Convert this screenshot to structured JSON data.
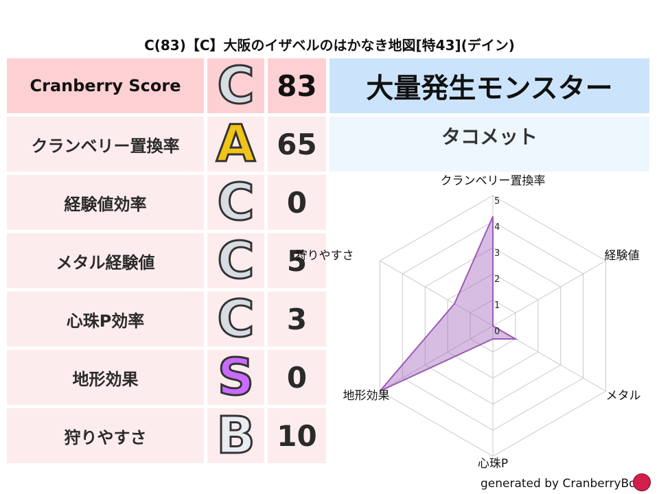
{
  "title": "C(83)【C】大阪のイザベルのはかなき地図[特43](デイン)",
  "rows": [
    {
      "label": "Cranberry Score",
      "grade": "C",
      "value": "83"
    },
    {
      "label": "クランベリー置換率",
      "grade": "A",
      "value": "65"
    },
    {
      "label": "経験値効率",
      "grade": "C",
      "value": "0"
    },
    {
      "label": "メタル経験値",
      "grade": "C",
      "value": "5"
    },
    {
      "label": "心珠P効率",
      "grade": "C",
      "value": "3"
    },
    {
      "label": "地形効果",
      "grade": "S",
      "value": "0"
    },
    {
      "label": "狩りやすさ",
      "grade": "B",
      "value": "10"
    }
  ],
  "grade_colors": {
    "C": "#d8dde3",
    "A": "#f0c419",
    "S": "#c86bff",
    "B": "#e9edf1"
  },
  "right": {
    "header": "大量発生モンスター",
    "monster": "タコメット"
  },
  "footer": "generated by CranberryBot",
  "chart_data": {
    "type": "radar",
    "axes": [
      "クランベリー置換率",
      "経験値",
      "メタル",
      "心珠P",
      "地形効果",
      "狩りやすさ"
    ],
    "values": [
      4.2,
      0,
      1,
      0.5,
      5,
      1.7
    ],
    "range": [
      0,
      5
    ],
    "ticks": [
      "0",
      "1",
      "2",
      "3",
      "4",
      "5"
    ],
    "color": "#9b59b6"
  }
}
